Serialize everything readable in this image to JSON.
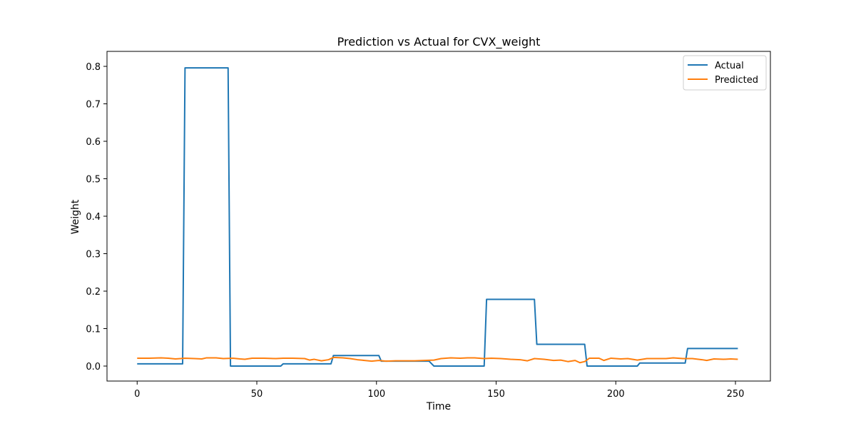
{
  "chart_data": {
    "type": "line",
    "title": "Prediction vs Actual for CVX_weight",
    "xlabel": "Time",
    "ylabel": "Weight",
    "xlim": [
      -12.6,
      264.6
    ],
    "ylim": [
      -0.04,
      0.84
    ],
    "x_ticks": [
      0,
      50,
      100,
      150,
      200,
      250
    ],
    "y_ticks": [
      0.0,
      0.1,
      0.2,
      0.3,
      0.4,
      0.5,
      0.6,
      0.7,
      0.8
    ],
    "grid": false,
    "legend_position": "top-right",
    "series": [
      {
        "name": "Actual",
        "color": "#1f77b4",
        "points": [
          [
            0,
            0.006
          ],
          [
            19,
            0.006
          ],
          [
            20,
            0.796
          ],
          [
            38,
            0.796
          ],
          [
            39,
            0.0
          ],
          [
            60,
            0.0
          ],
          [
            61,
            0.006
          ],
          [
            81,
            0.006
          ],
          [
            82,
            0.028
          ],
          [
            101,
            0.028
          ],
          [
            102,
            0.013
          ],
          [
            122,
            0.013
          ],
          [
            124,
            0.0
          ],
          [
            145,
            0.0
          ],
          [
            146,
            0.178
          ],
          [
            166,
            0.178
          ],
          [
            167,
            0.058
          ],
          [
            187,
            0.058
          ],
          [
            188,
            0.0
          ],
          [
            209,
            0.0
          ],
          [
            210,
            0.008
          ],
          [
            229,
            0.008
          ],
          [
            230,
            0.047
          ],
          [
            251,
            0.047
          ]
        ]
      },
      {
        "name": "Predicted",
        "color": "#ff7f0e",
        "points": [
          [
            0,
            0.021
          ],
          [
            5,
            0.021
          ],
          [
            10,
            0.022
          ],
          [
            13,
            0.021
          ],
          [
            16,
            0.019
          ],
          [
            20,
            0.021
          ],
          [
            24,
            0.02
          ],
          [
            27,
            0.019
          ],
          [
            29,
            0.022
          ],
          [
            33,
            0.022
          ],
          [
            36,
            0.02
          ],
          [
            40,
            0.021
          ],
          [
            43,
            0.019
          ],
          [
            45,
            0.018
          ],
          [
            48,
            0.021
          ],
          [
            53,
            0.021
          ],
          [
            58,
            0.02
          ],
          [
            61,
            0.021
          ],
          [
            65,
            0.021
          ],
          [
            70,
            0.02
          ],
          [
            72,
            0.016
          ],
          [
            74,
            0.018
          ],
          [
            77,
            0.014
          ],
          [
            80,
            0.017
          ],
          [
            82,
            0.023
          ],
          [
            86,
            0.022
          ],
          [
            89,
            0.02
          ],
          [
            92,
            0.017
          ],
          [
            95,
            0.015
          ],
          [
            98,
            0.013
          ],
          [
            101,
            0.015
          ],
          [
            104,
            0.013
          ],
          [
            108,
            0.014
          ],
          [
            112,
            0.014
          ],
          [
            116,
            0.014
          ],
          [
            120,
            0.015
          ],
          [
            124,
            0.016
          ],
          [
            127,
            0.02
          ],
          [
            131,
            0.022
          ],
          [
            135,
            0.021
          ],
          [
            138,
            0.022
          ],
          [
            141,
            0.022
          ],
          [
            145,
            0.02
          ],
          [
            148,
            0.021
          ],
          [
            152,
            0.02
          ],
          [
            156,
            0.018
          ],
          [
            160,
            0.017
          ],
          [
            163,
            0.014
          ],
          [
            166,
            0.02
          ],
          [
            170,
            0.018
          ],
          [
            174,
            0.015
          ],
          [
            177,
            0.016
          ],
          [
            180,
            0.012
          ],
          [
            183,
            0.015
          ],
          [
            185,
            0.009
          ],
          [
            187,
            0.012
          ],
          [
            189,
            0.021
          ],
          [
            193,
            0.021
          ],
          [
            195,
            0.015
          ],
          [
            198,
            0.021
          ],
          [
            202,
            0.019
          ],
          [
            205,
            0.02
          ],
          [
            209,
            0.016
          ],
          [
            213,
            0.02
          ],
          [
            217,
            0.02
          ],
          [
            221,
            0.02
          ],
          [
            224,
            0.022
          ],
          [
            228,
            0.02
          ],
          [
            232,
            0.02
          ],
          [
            236,
            0.017
          ],
          [
            238,
            0.015
          ],
          [
            241,
            0.019
          ],
          [
            245,
            0.018
          ],
          [
            248,
            0.019
          ],
          [
            251,
            0.018
          ]
        ]
      }
    ]
  }
}
